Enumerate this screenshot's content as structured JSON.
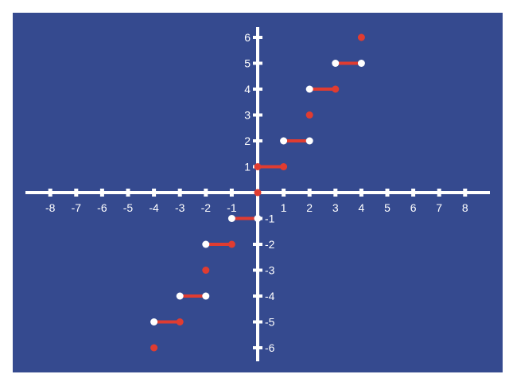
{
  "chart_data": {
    "type": "scatter",
    "title": "",
    "xlabel": "",
    "ylabel": "",
    "xlim": [
      -9,
      9
    ],
    "ylim": [
      -6.5,
      6.5
    ],
    "grid": false,
    "background_color": "#354a8f",
    "axis_color": "#ffffff",
    "series_color": "#e03c31",
    "open_point_color": "#ffffff",
    "x_ticks": [
      -8,
      -7,
      -6,
      -5,
      -4,
      -3,
      -2,
      -1,
      1,
      2,
      3,
      4,
      5,
      6,
      7,
      8
    ],
    "x_tick_labels": [
      "-8",
      "-7",
      "-6",
      "-5",
      "-4",
      "-3",
      "-2",
      "-1",
      "1",
      "2",
      "3",
      "4",
      "5",
      "6",
      "7",
      "8"
    ],
    "y_ticks": [
      -6,
      -5,
      -4,
      -3,
      -2,
      -1,
      1,
      2,
      3,
      4,
      5,
      6
    ],
    "y_tick_labels": [
      "-6",
      "-5",
      "-4",
      "-3",
      "-2",
      "-1",
      "1",
      "2",
      "3",
      "4",
      "5",
      "6"
    ],
    "segments": [
      {
        "x1": 0,
        "x2": 1,
        "y": 1,
        "left_closed": true,
        "right_closed": true
      },
      {
        "x1": 1,
        "x2": 2,
        "y": 2,
        "left_closed": false,
        "right_closed": false
      },
      {
        "x1": 2,
        "x2": 3,
        "y": 4,
        "left_closed": false,
        "right_closed": true
      },
      {
        "x1": 3,
        "x2": 4,
        "y": 5,
        "left_closed": false,
        "right_closed": false
      },
      {
        "x1": -1,
        "x2": 0,
        "y": -1,
        "left_closed": false,
        "right_closed": false
      },
      {
        "x1": -2,
        "x2": -1,
        "y": -2,
        "left_closed": false,
        "right_closed": true
      },
      {
        "x1": -3,
        "x2": -2,
        "y": -4,
        "left_closed": false,
        "right_closed": false
      },
      {
        "x1": -4,
        "x2": -3,
        "y": -5,
        "left_closed": false,
        "right_closed": true
      }
    ],
    "points": [
      {
        "x": 0,
        "y": 0
      },
      {
        "x": 2,
        "y": 3
      },
      {
        "x": 4,
        "y": 6
      },
      {
        "x": -2,
        "y": -3
      },
      {
        "x": -4,
        "y": -6
      }
    ]
  }
}
